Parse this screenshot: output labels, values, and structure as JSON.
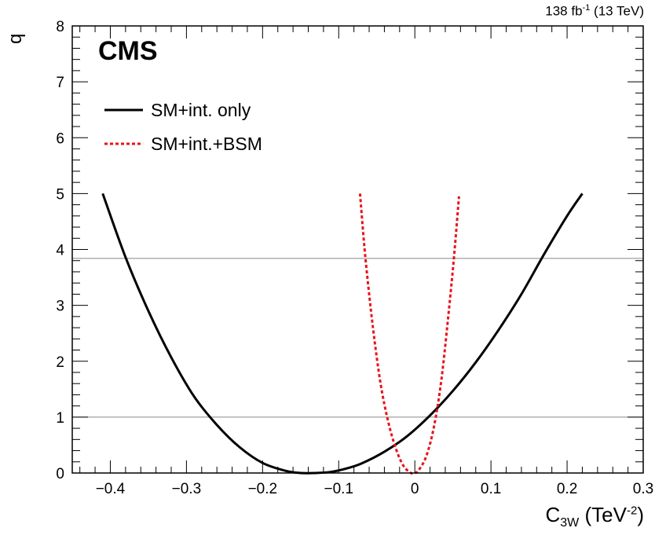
{
  "header": {
    "lumi": "138 fb",
    "lumi_exp": "-1",
    "energy": "(13 TeV)",
    "experiment": "CMS"
  },
  "axis": {
    "ylabel": "q",
    "xlabel_main": "C",
    "xlabel_sub": "3W",
    "xlabel_unit_open": "(TeV",
    "xlabel_unit_exp": "-2",
    "xlabel_unit_close": ")"
  },
  "chart_data": {
    "type": "line",
    "title": "",
    "xlabel": "C3W (TeV^-2)",
    "ylabel": "q",
    "xlim": [
      -0.45,
      0.3
    ],
    "ylim": [
      0,
      8
    ],
    "xticks": [
      "-0.4",
      "-0.3",
      "-0.2",
      "-0.1",
      "0",
      "0.1",
      "0.2",
      "0.3"
    ],
    "yticks": [
      "0",
      "1",
      "2",
      "3",
      "4",
      "5",
      "6",
      "7",
      "8"
    ],
    "grid": false,
    "legend_position": "top-left",
    "reference_lines": [
      1.0,
      3.84
    ],
    "series": [
      {
        "name": "SM+int. only",
        "color": "#000000",
        "style": "solid",
        "x": [
          -0.41,
          -0.38,
          -0.35,
          -0.32,
          -0.29,
          -0.26,
          -0.23,
          -0.2,
          -0.17,
          -0.15,
          -0.13,
          -0.11,
          -0.09,
          -0.07,
          -0.04,
          -0.01,
          0.02,
          0.05,
          0.08,
          0.11,
          0.14,
          0.17,
          0.2,
          0.22
        ],
        "y": [
          5.0,
          3.86,
          2.9,
          2.07,
          1.37,
          0.86,
          0.46,
          0.18,
          0.04,
          0.0,
          0.0,
          0.02,
          0.08,
          0.17,
          0.38,
          0.66,
          1.03,
          1.47,
          1.98,
          2.56,
          3.2,
          3.92,
          4.6,
          5.0
        ]
      },
      {
        "name": "SM+int.+BSM",
        "color": "#e8141b",
        "style": "dashed",
        "x": [
          -0.072,
          -0.065,
          -0.055,
          -0.045,
          -0.035,
          -0.025,
          -0.015,
          -0.005,
          0.0,
          0.005,
          0.015,
          0.025,
          0.035,
          0.045,
          0.052,
          0.058
        ],
        "y": [
          5.0,
          3.86,
          2.6,
          1.6,
          0.92,
          0.44,
          0.13,
          0.0,
          0.0,
          0.05,
          0.3,
          0.82,
          1.68,
          2.95,
          3.95,
          4.95
        ]
      }
    ]
  }
}
